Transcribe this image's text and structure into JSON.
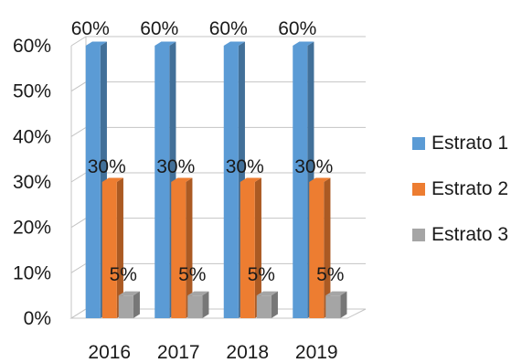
{
  "chart_data": {
    "type": "bar",
    "title": "",
    "xlabel": "",
    "ylabel": "",
    "categories": [
      "2016",
      "2017",
      "2018",
      "2019"
    ],
    "ylim": [
      0,
      60
    ],
    "yticks": [
      "0%",
      "10%",
      "20%",
      "30%",
      "40%",
      "50%",
      "60%"
    ],
    "grid": true,
    "legend_position": "right",
    "series": [
      {
        "name": "Estrato 1",
        "values": [
          60,
          60,
          60,
          60
        ],
        "labels": [
          "60%",
          "60%",
          "60%",
          "60%"
        ],
        "color": "#5b9bd5"
      },
      {
        "name": "Estrato 2",
        "values": [
          30,
          30,
          30,
          30
        ],
        "labels": [
          "30%",
          "30%",
          "30%",
          "30%"
        ],
        "color": "#ed7d31"
      },
      {
        "name": "Estrato 3",
        "values": [
          5,
          5,
          5,
          5
        ],
        "labels": [
          "5%",
          "5%",
          "5%",
          "5%"
        ],
        "color": "#a5a5a5"
      }
    ]
  }
}
